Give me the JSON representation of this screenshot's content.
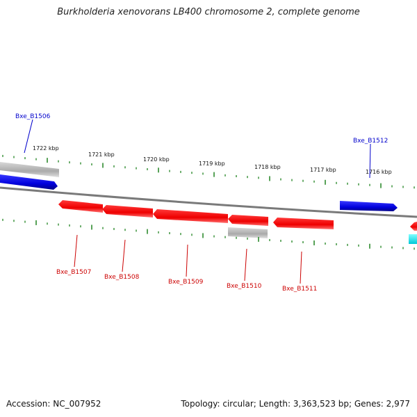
{
  "title": "Burkholderia xenovorans LB400 chromosome 2, complete genome",
  "footer": {
    "accession": "Accession: NC_007952",
    "stats": "Topology: circular; Length: 3,363,523 bp; Genes: 2,977"
  },
  "scale_labels": [
    "1722 kbp",
    "1721 kbp",
    "1720 kbp",
    "1719 kbp",
    "1718 kbp",
    "1717 kbp",
    "1716 kbp"
  ],
  "genes": [
    {
      "id": "Bxe_B1506",
      "strand": "forward",
      "color": "#0000cc"
    },
    {
      "id": "Bxe_B1512",
      "strand": "forward",
      "color": "#0000cc"
    },
    {
      "id": "Bxe_B1507",
      "strand": "reverse",
      "color": "#cc0000"
    },
    {
      "id": "Bxe_B1508",
      "strand": "reverse",
      "color": "#cc0000"
    },
    {
      "id": "Bxe_B1509",
      "strand": "reverse",
      "color": "#cc0000"
    },
    {
      "id": "Bxe_B1510",
      "strand": "reverse",
      "color": "#cc0000"
    },
    {
      "id": "Bxe_B1511",
      "strand": "reverse",
      "color": "#cc0000"
    }
  ],
  "colors": {
    "forward_gene": "#0000ee",
    "reverse_gene": "#ee0000",
    "other_feature": "#b0b0b0",
    "cyan_feature": "#00e5ee",
    "backbone": "#808080",
    "ticks": "#2e8b2e"
  }
}
